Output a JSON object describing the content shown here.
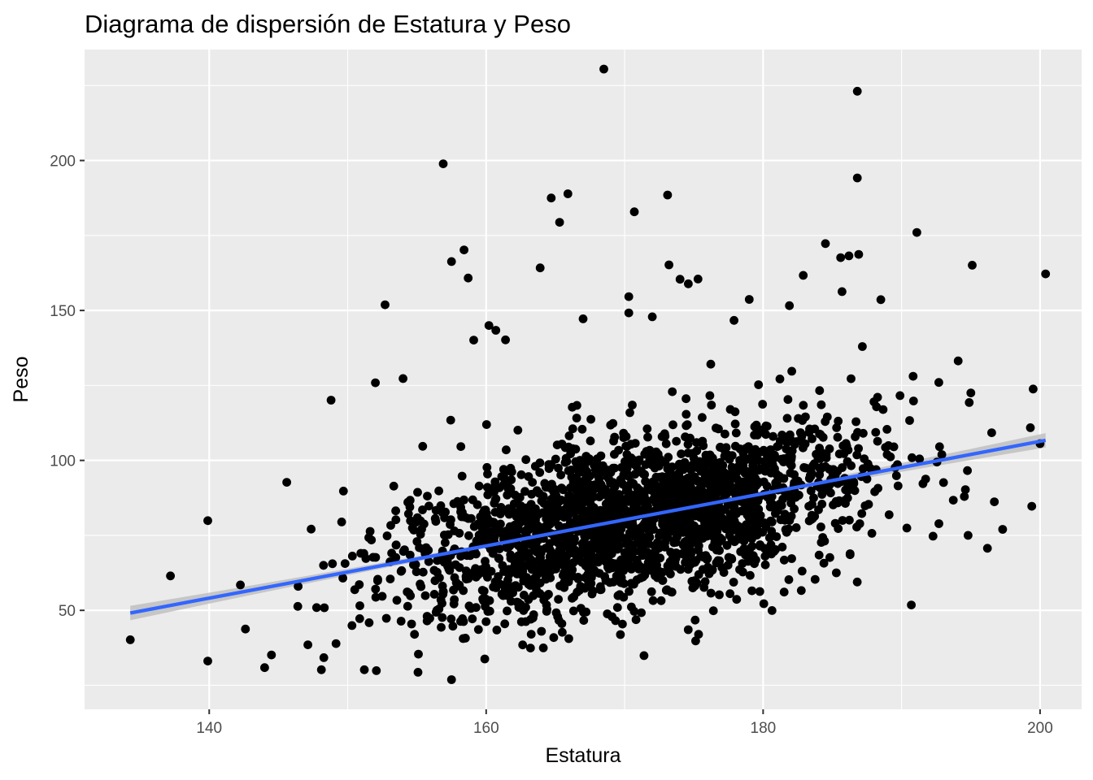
{
  "chart_data": {
    "type": "scatter",
    "title": "Diagrama de dispersión de Estatura y Peso",
    "xlabel": "Estatura",
    "ylabel": "Peso",
    "xlim": [
      131,
      203
    ],
    "ylim": [
      17,
      237
    ],
    "x_ticks": [
      140,
      160,
      180,
      200
    ],
    "x_tick_labels": [
      "140",
      "160",
      "180",
      "200"
    ],
    "y_ticks": [
      50,
      100,
      150,
      200
    ],
    "y_tick_labels": [
      "50",
      "100",
      "150",
      "200"
    ],
    "grid": true,
    "legend": "none",
    "colors": {
      "panel": "#ebebeb",
      "grid": "#ffffff",
      "points": "#000000",
      "fit_line": "#3366ff",
      "ribbon": "#bdbdbd"
    },
    "notable_points": [
      {
        "x": 168.5,
        "y": 230.5
      },
      {
        "x": 186.8,
        "y": 223.1
      },
      {
        "x": 186.8,
        "y": 194.2
      },
      {
        "x": 156.9,
        "y": 198.9
      },
      {
        "x": 173.1,
        "y": 188.5
      },
      {
        "x": 165.9,
        "y": 188.9
      },
      {
        "x": 164.7,
        "y": 187.5
      },
      {
        "x": 170.7,
        "y": 182.9
      },
      {
        "x": 165.3,
        "y": 179.4
      },
      {
        "x": 191.1,
        "y": 176.0
      },
      {
        "x": 184.5,
        "y": 172.3
      },
      {
        "x": 158.4,
        "y": 170.2
      },
      {
        "x": 186.9,
        "y": 168.7
      },
      {
        "x": 186.2,
        "y": 168.2
      },
      {
        "x": 185.6,
        "y": 167.6
      },
      {
        "x": 157.5,
        "y": 166.3
      },
      {
        "x": 173.2,
        "y": 165.2
      },
      {
        "x": 195.1,
        "y": 165.1
      },
      {
        "x": 163.9,
        "y": 164.2
      },
      {
        "x": 200.4,
        "y": 162.2
      },
      {
        "x": 182.9,
        "y": 161.7
      },
      {
        "x": 158.7,
        "y": 160.8
      },
      {
        "x": 175.3,
        "y": 160.5
      },
      {
        "x": 174.0,
        "y": 160.4
      },
      {
        "x": 174.6,
        "y": 158.9
      },
      {
        "x": 185.7,
        "y": 156.3
      },
      {
        "x": 170.3,
        "y": 154.6
      },
      {
        "x": 188.5,
        "y": 153.6
      },
      {
        "x": 179.0,
        "y": 153.7
      },
      {
        "x": 152.7,
        "y": 151.9
      },
      {
        "x": 181.9,
        "y": 151.6
      },
      {
        "x": 170.3,
        "y": 149.2
      },
      {
        "x": 172.0,
        "y": 147.9
      },
      {
        "x": 167.0,
        "y": 147.2
      },
      {
        "x": 177.9,
        "y": 146.7
      },
      {
        "x": 195.0,
        "y": 122.5
      },
      {
        "x": 199.5,
        "y": 123.8
      },
      {
        "x": 199.3,
        "y": 110.9
      },
      {
        "x": 200.0,
        "y": 105.6
      },
      {
        "x": 196.7,
        "y": 86.2
      },
      {
        "x": 199.4,
        "y": 84.7
      },
      {
        "x": 197.3,
        "y": 77.0
      },
      {
        "x": 194.8,
        "y": 75.0
      },
      {
        "x": 196.2,
        "y": 70.7
      },
      {
        "x": 190.7,
        "y": 51.8
      },
      {
        "x": 134.3,
        "y": 40.2
      },
      {
        "x": 137.2,
        "y": 61.5
      },
      {
        "x": 139.9,
        "y": 79.9
      },
      {
        "x": 139.9,
        "y": 33.1
      },
      {
        "x": 144.0,
        "y": 30.9
      },
      {
        "x": 148.1,
        "y": 30.2
      },
      {
        "x": 151.2,
        "y": 30.2
      },
      {
        "x": 157.5,
        "y": 26.9
      },
      {
        "x": 159.9,
        "y": 33.8
      },
      {
        "x": 171.4,
        "y": 34.9
      },
      {
        "x": 145.6,
        "y": 92.7
      },
      {
        "x": 148.8,
        "y": 120.1
      },
      {
        "x": 152.0,
        "y": 125.9
      },
      {
        "x": 154.0,
        "y": 127.3
      },
      {
        "x": 159.1,
        "y": 140.1
      },
      {
        "x": 160.2,
        "y": 145.0
      },
      {
        "x": 160.7,
        "y": 143.4
      },
      {
        "x": 161.4,
        "y": 140.2
      }
    ],
    "fit_line": {
      "method": "linear",
      "x": [
        134.3,
        200.4
      ],
      "y": [
        49.1,
        106.7
      ]
    }
  }
}
